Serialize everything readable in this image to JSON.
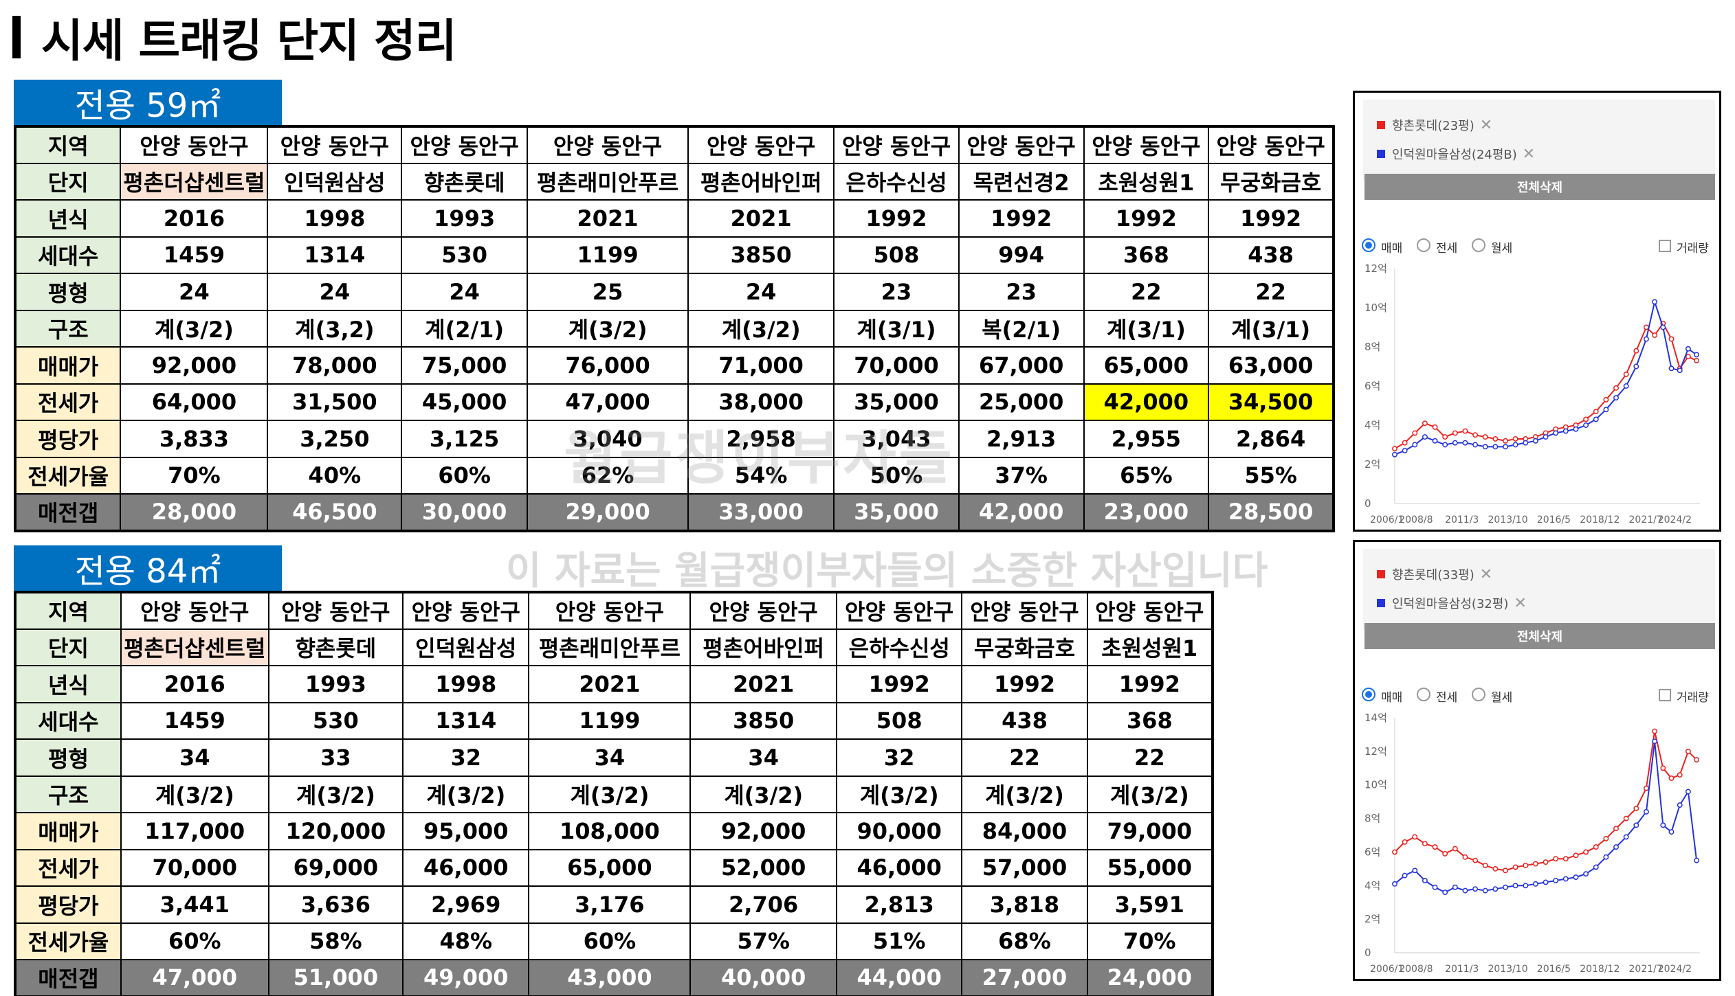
{
  "title": "시세 트래킹 단지 정리",
  "sections": [
    {
      "label_main": "전용 59㎡",
      "header_labels": [
        "지역",
        "단지",
        "년식",
        "세대수",
        "평형",
        "구조",
        "매매가",
        "전세가",
        "평당가",
        "전세가율",
        "매전갭"
      ],
      "columns": [
        {
          "지역": "안양 동안구",
          "단지": "평촌더샵센트럴",
          "년식": "2016",
          "세대수": "1459",
          "평형": "24",
          "구조": "계(3/2)",
          "매매가": "92,000",
          "전세가": "64,000",
          "평당가": "3,833",
          "전세가율": "70%",
          "매전갭": "28,000"
        },
        {
          "지역": "안양 동안구",
          "단지": "인덕원삼성",
          "년식": "1998",
          "세대수": "1314",
          "평형": "24",
          "구조": "계(3,2)",
          "매매가": "78,000",
          "전세가": "31,500",
          "평당가": "3,250",
          "전세가율": "40%",
          "매전갭": "46,500"
        },
        {
          "지역": "안양 동안구",
          "단지": "향촌롯데",
          "년식": "1993",
          "세대수": "530",
          "평형": "24",
          "구조": "계(2/1)",
          "매매가": "75,000",
          "전세가": "45,000",
          "평당가": "3,125",
          "전세가율": "60%",
          "매전갭": "30,000"
        },
        {
          "지역": "안양 동안구",
          "단지": "평촌래미안푸르",
          "년식": "2021",
          "세대수": "1199",
          "평형": "25",
          "구조": "계(3/2)",
          "매매가": "76,000",
          "전세가": "47,000",
          "평당가": "3,040",
          "전세가율": "62%",
          "매전갭": "29,000"
        },
        {
          "지역": "안양 동안구",
          "단지": "평촌어바인퍼",
          "년식": "2021",
          "세대수": "3850",
          "평형": "24",
          "구조": "계(3/2)",
          "매매가": "71,000",
          "전세가": "38,000",
          "평당가": "2,958",
          "전세가율": "54%",
          "매전갭": "33,000"
        },
        {
          "지역": "안양 동안구",
          "단지": "은하수신성",
          "년식": "1992",
          "세대수": "508",
          "평형": "23",
          "구조": "계(3/1)",
          "매매가": "70,000",
          "전세가": "35,000",
          "평당가": "3,043",
          "전세가율": "50%",
          "매전갭": "35,000"
        },
        {
          "지역": "안양 동안구",
          "단지": "목련선경2",
          "년식": "1992",
          "세대수": "994",
          "평형": "23",
          "구조": "복(2/1)",
          "매매가": "67,000",
          "전세가": "25,000",
          "평당가": "2,913",
          "전세가율": "37%",
          "매전갭": "42,000"
        },
        {
          "지역": "안양 동안구",
          "단지": "초원성원1",
          "년식": "1992",
          "세대수": "368",
          "평형": "22",
          "구조": "계(3/1)",
          "매매가": "65,000",
          "전세가": "42,000",
          "평당가": "2,955",
          "전세가율": "65%",
          "매전갭": "23,000"
        },
        {
          "지역": "안양 동안구",
          "단지": "무궁화금호",
          "년식": "1992",
          "세대수": "438",
          "평형": "22",
          "구조": "계(3/1)",
          "매매가": "63,000",
          "전세가": "34,500",
          "평당가": "2,864",
          "전세가율": "55%",
          "매전갭": "28,500"
        }
      ]
    },
    {
      "label_main": "전용 84㎡",
      "header_labels": [
        "지역",
        "단지",
        "년식",
        "세대수",
        "평형",
        "구조",
        "매매가",
        "전세가",
        "평당가",
        "전세가율",
        "매전갭"
      ],
      "columns": [
        {
          "지역": "안양 동안구",
          "단지": "평촌더샵센트럴",
          "년식": "2016",
          "세대수": "1459",
          "평형": "34",
          "구조": "계(3/2)",
          "매매가": "117,000",
          "전세가": "70,000",
          "평당가": "3,441",
          "전세가율": "60%",
          "매전갭": "47,000"
        },
        {
          "지역": "안양 동안구",
          "단지": "향촌롯데",
          "년식": "1993",
          "세대수": "530",
          "평형": "33",
          "구조": "계(3/2)",
          "매매가": "120,000",
          "전세가": "69,000",
          "평당가": "3,636",
          "전세가율": "58%",
          "매전갭": "51,000"
        },
        {
          "지역": "안양 동안구",
          "단지": "인덕원삼성",
          "년식": "1998",
          "세대수": "1314",
          "평형": "32",
          "구조": "계(3/2)",
          "매매가": "95,000",
          "전세가": "46,000",
          "평당가": "2,969",
          "전세가율": "48%",
          "매전갭": "49,000"
        },
        {
          "지역": "안양 동안구",
          "단지": "평촌래미안푸르",
          "년식": "2021",
          "세대수": "1199",
          "평형": "34",
          "구조": "계(3/2)",
          "매매가": "108,000",
          "전세가": "65,000",
          "평당가": "3,176",
          "전세가율": "60%",
          "매전갭": "43,000"
        },
        {
          "지역": "안양 동안구",
          "단지": "평촌어바인퍼",
          "년식": "2021",
          "세대수": "3850",
          "평형": "34",
          "구조": "계(3/2)",
          "매매가": "92,000",
          "전세가": "52,000",
          "평당가": "2,706",
          "전세가율": "57%",
          "매전갭": "40,000"
        },
        {
          "지역": "안양 동안구",
          "단지": "은하수신성",
          "년식": "1992",
          "세대수": "508",
          "평형": "32",
          "구조": "계(3/2)",
          "매매가": "90,000",
          "전세가": "46,000",
          "평당가": "2,813",
          "전세가율": "51%",
          "매전갭": "44,000"
        },
        {
          "지역": "안양 동안구",
          "단지": "무궁화금호",
          "년식": "1992",
          "세대수": "438",
          "평형": "22",
          "구조": "계(3/2)",
          "매매가": "84,000",
          "전세가": "57,000",
          "평당가": "3,818",
          "전세가율": "68%",
          "매전갭": "27,000"
        },
        {
          "지역": "안양 동안구",
          "단지": "초원성원1",
          "년식": "1992",
          "세대수": "368",
          "평형": "22",
          "구조": "계(3/2)",
          "매매가": "79,000",
          "전세가": "55,000",
          "평당가": "3,591",
          "전세가율": "70%",
          "매전갭": "24,000"
        }
      ]
    }
  ],
  "watermark": {
    "main": "월급쟁이부자들",
    "sub": "이 자료는 월급쟁이부자들의 소중한 자산입니다"
  },
  "colors": {
    "section_label_bg": "#0070c0",
    "header_green": "#e2efda",
    "header_orange": "#fff2cc",
    "gap_gray": "#7f7f7f",
    "highlight_yellow": "#ffff00",
    "pink": "#fbe3d6",
    "series_red": "#e8231f",
    "series_blue": "#2233dd"
  },
  "chart_data": [
    {
      "type": "line",
      "legend": [
        {
          "name": "향촌롯데(23평)",
          "color": "#e8231f"
        },
        {
          "name": "인덕원마을삼성(24평B)",
          "color": "#2233dd"
        }
      ],
      "delete_label": "전체삭제",
      "options": {
        "radios": [
          "매매",
          "전세",
          "월세"
        ],
        "selected": "매매",
        "checkbox": "거래량"
      },
      "y_ticks": [
        "0",
        "2억",
        "4억",
        "6억",
        "8억",
        "10억",
        "12억"
      ],
      "ylim": [
        0,
        12
      ],
      "x_ticks": [
        "2006/1",
        "2008/8",
        "2011/3",
        "2013/10",
        "2016/5",
        "2018/12",
        "2021/7",
        "2024/2"
      ],
      "xlim": [
        2006.0,
        2024.2
      ],
      "series": [
        {
          "name": "향촌롯데(23평)",
          "color": "#e8231f",
          "x": [
            2006.0,
            2006.6,
            2007.2,
            2007.8,
            2008.4,
            2009.0,
            2009.6,
            2010.2,
            2010.8,
            2011.4,
            2012.0,
            2012.6,
            2013.2,
            2013.8,
            2014.4,
            2015.0,
            2015.6,
            2016.2,
            2016.8,
            2017.4,
            2018.0,
            2018.6,
            2019.2,
            2019.8,
            2020.4,
            2021.0,
            2021.5,
            2022.0,
            2022.5,
            2023.0,
            2023.5,
            2024.0
          ],
          "y": [
            2.8,
            3.1,
            3.6,
            4.1,
            3.9,
            3.4,
            3.6,
            3.7,
            3.5,
            3.4,
            3.3,
            3.2,
            3.3,
            3.3,
            3.4,
            3.6,
            3.8,
            3.9,
            4.0,
            4.3,
            4.7,
            5.3,
            5.9,
            6.6,
            7.8,
            9.0,
            8.6,
            9.2,
            8.4,
            6.9,
            7.5,
            7.3
          ]
        },
        {
          "name": "인덕원마을삼성(24평B)",
          "color": "#2233dd",
          "x": [
            2006.0,
            2006.6,
            2007.2,
            2007.8,
            2008.4,
            2009.0,
            2009.6,
            2010.2,
            2010.8,
            2011.4,
            2012.0,
            2012.6,
            2013.2,
            2013.8,
            2014.4,
            2015.0,
            2015.6,
            2016.2,
            2016.8,
            2017.4,
            2018.0,
            2018.6,
            2019.2,
            2019.8,
            2020.4,
            2021.0,
            2021.5,
            2022.0,
            2022.5,
            2023.0,
            2023.5,
            2024.0
          ],
          "y": [
            2.5,
            2.7,
            3.0,
            3.4,
            3.2,
            3.0,
            3.1,
            3.1,
            3.0,
            2.9,
            2.9,
            2.9,
            3.0,
            3.1,
            3.2,
            3.4,
            3.6,
            3.7,
            3.8,
            4.0,
            4.3,
            4.8,
            5.4,
            6.0,
            7.0,
            8.4,
            10.3,
            9.0,
            6.9,
            6.8,
            7.9,
            7.6
          ]
        }
      ]
    },
    {
      "type": "line",
      "legend": [
        {
          "name": "향촌롯데(33평)",
          "color": "#e8231f"
        },
        {
          "name": "인덕원마을삼성(32평)",
          "color": "#2233dd"
        }
      ],
      "delete_label": "전체삭제",
      "options": {
        "radios": [
          "매매",
          "전세",
          "월세"
        ],
        "selected": "매매",
        "checkbox": "거래량"
      },
      "y_ticks": [
        "0",
        "2억",
        "4억",
        "6억",
        "8억",
        "10억",
        "12억",
        "14억"
      ],
      "ylim": [
        0,
        14
      ],
      "x_ticks": [
        "2006/1",
        "2008/8",
        "2011/3",
        "2013/10",
        "2016/5",
        "2018/12",
        "2021/7",
        "2024/2"
      ],
      "xlim": [
        2006.0,
        2024.2
      ],
      "series": [
        {
          "name": "향촌롯데(33평)",
          "color": "#e8231f",
          "x": [
            2006.0,
            2006.6,
            2007.2,
            2007.8,
            2008.4,
            2009.0,
            2009.6,
            2010.2,
            2010.8,
            2011.4,
            2012.0,
            2012.6,
            2013.2,
            2013.8,
            2014.4,
            2015.0,
            2015.6,
            2016.2,
            2016.8,
            2017.4,
            2018.0,
            2018.6,
            2019.2,
            2019.8,
            2020.4,
            2021.0,
            2021.5,
            2022.0,
            2022.5,
            2023.0,
            2023.5,
            2024.0
          ],
          "y": [
            6.0,
            6.6,
            6.9,
            6.5,
            6.3,
            5.9,
            6.2,
            5.7,
            5.5,
            5.2,
            5.0,
            4.9,
            5.1,
            5.2,
            5.3,
            5.4,
            5.6,
            5.6,
            5.8,
            6.0,
            6.3,
            6.8,
            7.4,
            8.0,
            8.6,
            9.8,
            13.2,
            11.0,
            10.4,
            10.6,
            12.0,
            11.5
          ]
        },
        {
          "name": "인덕원마을삼성(32평)",
          "color": "#2233dd",
          "x": [
            2006.0,
            2006.6,
            2007.2,
            2007.8,
            2008.4,
            2009.0,
            2009.6,
            2010.2,
            2010.8,
            2011.4,
            2012.0,
            2012.6,
            2013.2,
            2013.8,
            2014.4,
            2015.0,
            2015.6,
            2016.2,
            2016.8,
            2017.4,
            2018.0,
            2018.6,
            2019.2,
            2019.8,
            2020.4,
            2021.0,
            2021.5,
            2022.0,
            2022.5,
            2023.0,
            2023.5,
            2024.0
          ],
          "y": [
            4.1,
            4.6,
            4.9,
            4.3,
            3.9,
            3.6,
            3.9,
            3.7,
            3.8,
            3.7,
            3.8,
            3.9,
            4.0,
            4.0,
            4.1,
            4.2,
            4.3,
            4.4,
            4.5,
            4.7,
            5.1,
            5.7,
            6.3,
            6.9,
            7.6,
            8.4,
            12.6,
            7.6,
            7.2,
            8.8,
            9.6,
            5.5
          ]
        }
      ]
    }
  ]
}
